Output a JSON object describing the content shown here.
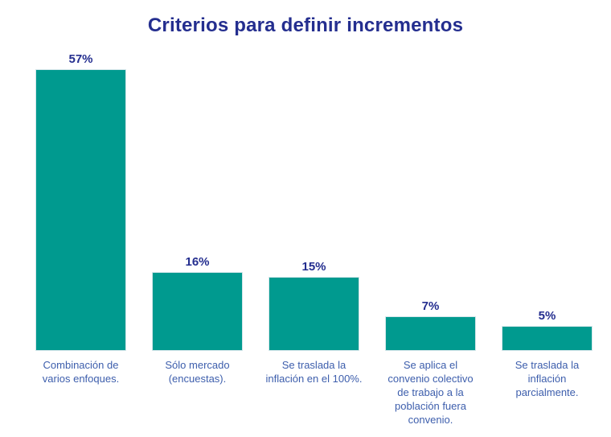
{
  "page": {
    "background": "#ffffff"
  },
  "chart_data": {
    "type": "bar",
    "title": "Criterios para definir incrementos",
    "categories": [
      "Combinación de varios enfoques.",
      "Sólo mercado (encuestas).",
      "Se traslada la inflación en el 100%.",
      "Se aplica el convenio colectivo de trabajo a la población fuera convenio.",
      "Se traslada la inflación parcialmente."
    ],
    "values": [
      57,
      16,
      15,
      7,
      5
    ],
    "value_labels": [
      "57%",
      "16%",
      "15%",
      "7%",
      "5%"
    ],
    "unit": "%",
    "xlabel": "",
    "ylabel": "",
    "ylim": [
      0,
      60
    ],
    "grid": false,
    "legend": false,
    "bar_color": "#009A8F",
    "bar_border_color": "#D5E6EA",
    "title_color": "#242E8F",
    "value_label_color": "#242E8F",
    "category_label_color": "#3D5EAC"
  }
}
